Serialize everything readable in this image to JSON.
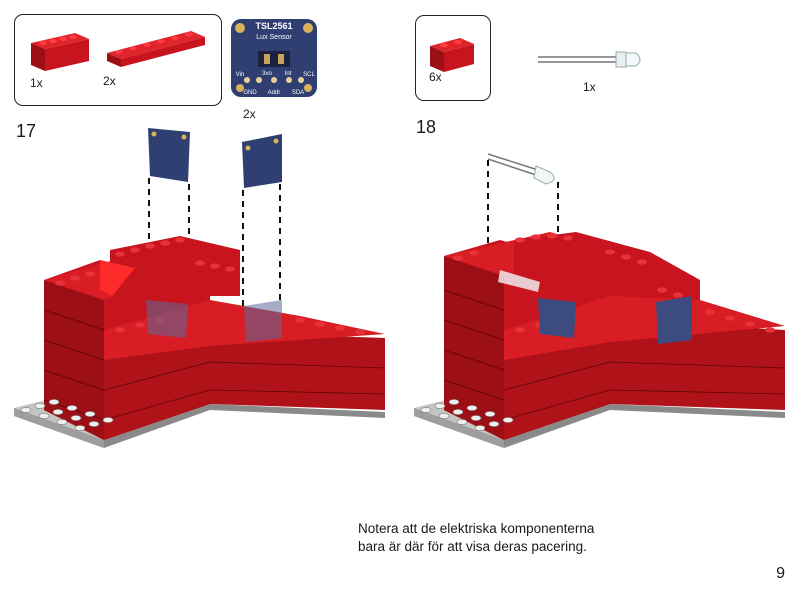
{
  "colors": {
    "brick_red": "#c8141e",
    "brick_dark": "#8e0c12",
    "baseplate": "#bdbdbd",
    "sensor_blue": "#2f3f72"
  },
  "step17": {
    "number": "17",
    "parts": [
      {
        "icon": "red-brick-1x4-icon",
        "qty": "1x"
      },
      {
        "icon": "red-plate-1x6-icon",
        "qty": "2x"
      },
      {
        "icon": "tsl2561-sensor-icon",
        "qty": "2x"
      }
    ],
    "sensor_board": {
      "title": "TSL2561",
      "subtitle": "Lux Sensor",
      "pins_top": [
        "Vin",
        "3vo",
        "Int",
        "SCL"
      ],
      "pins_bottom": [
        "GND",
        "Addr",
        "SDA"
      ]
    }
  },
  "step18": {
    "number": "18",
    "parts": [
      {
        "icon": "red-brick-1x2-icon",
        "qty": "6x"
      },
      {
        "icon": "led-icon",
        "qty": "1x"
      }
    ]
  },
  "note": {
    "line1": "Notera att de elektriska komponenterna",
    "line2": "bara är där för att visa deras pacering."
  },
  "page_number": "9"
}
